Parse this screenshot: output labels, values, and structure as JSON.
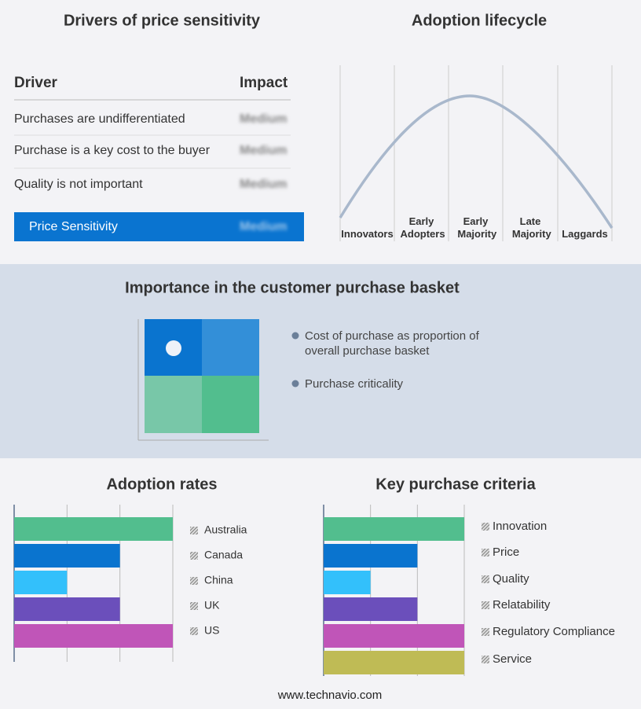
{
  "drivers": {
    "title": "Drivers of price sensitivity",
    "header": [
      "Driver",
      "Impact"
    ],
    "rows": [
      [
        "Purchases are undifferentiated",
        "Medium"
      ],
      [
        "Purchase is a key cost to the buyer",
        "Medium"
      ],
      [
        "Quality is not important",
        "Medium"
      ]
    ],
    "summary": [
      "Price Sensitivity",
      "Medium"
    ]
  },
  "lifecycle": {
    "title": "Adoption lifecycle",
    "stages": [
      "Innovators",
      "Early Adopters",
      "Early Majority",
      "Late Majority",
      "Laggards"
    ]
  },
  "basket": {
    "title": "Importance in the customer purchase basket",
    "legend": [
      "Cost of purchase as proportion of overall purchase basket",
      "Purchase criticality"
    ]
  },
  "chart_data": [
    {
      "type": "bar",
      "orientation": "horizontal",
      "title": "Adoption rates",
      "categories": [
        "Australia",
        "Canada",
        "China",
        "UK",
        "US"
      ],
      "values": [
        3,
        2,
        1,
        2,
        3
      ],
      "colors": [
        "#52be8e",
        "#0a74cf",
        "#33c0fb",
        "#6b4fbb",
        "#c055b8"
      ],
      "xlim": [
        0,
        3
      ],
      "xticks": [
        0,
        1,
        2,
        3
      ],
      "grid": true
    },
    {
      "type": "bar",
      "orientation": "horizontal",
      "title": "Key purchase criteria",
      "categories": [
        "Innovation",
        "Price",
        "Quality",
        "Relatability",
        "Regulatory Compliance",
        "Service"
      ],
      "values": [
        3,
        2,
        1,
        2,
        3,
        3
      ],
      "colors": [
        "#52be8e",
        "#0a74cf",
        "#33c0fb",
        "#6b4fbb",
        "#c055b8",
        "#bfbb55"
      ],
      "xlim": [
        0,
        3
      ],
      "xticks": [
        0,
        1,
        2,
        3
      ],
      "grid": true
    }
  ],
  "footer": "www.technavio.com"
}
